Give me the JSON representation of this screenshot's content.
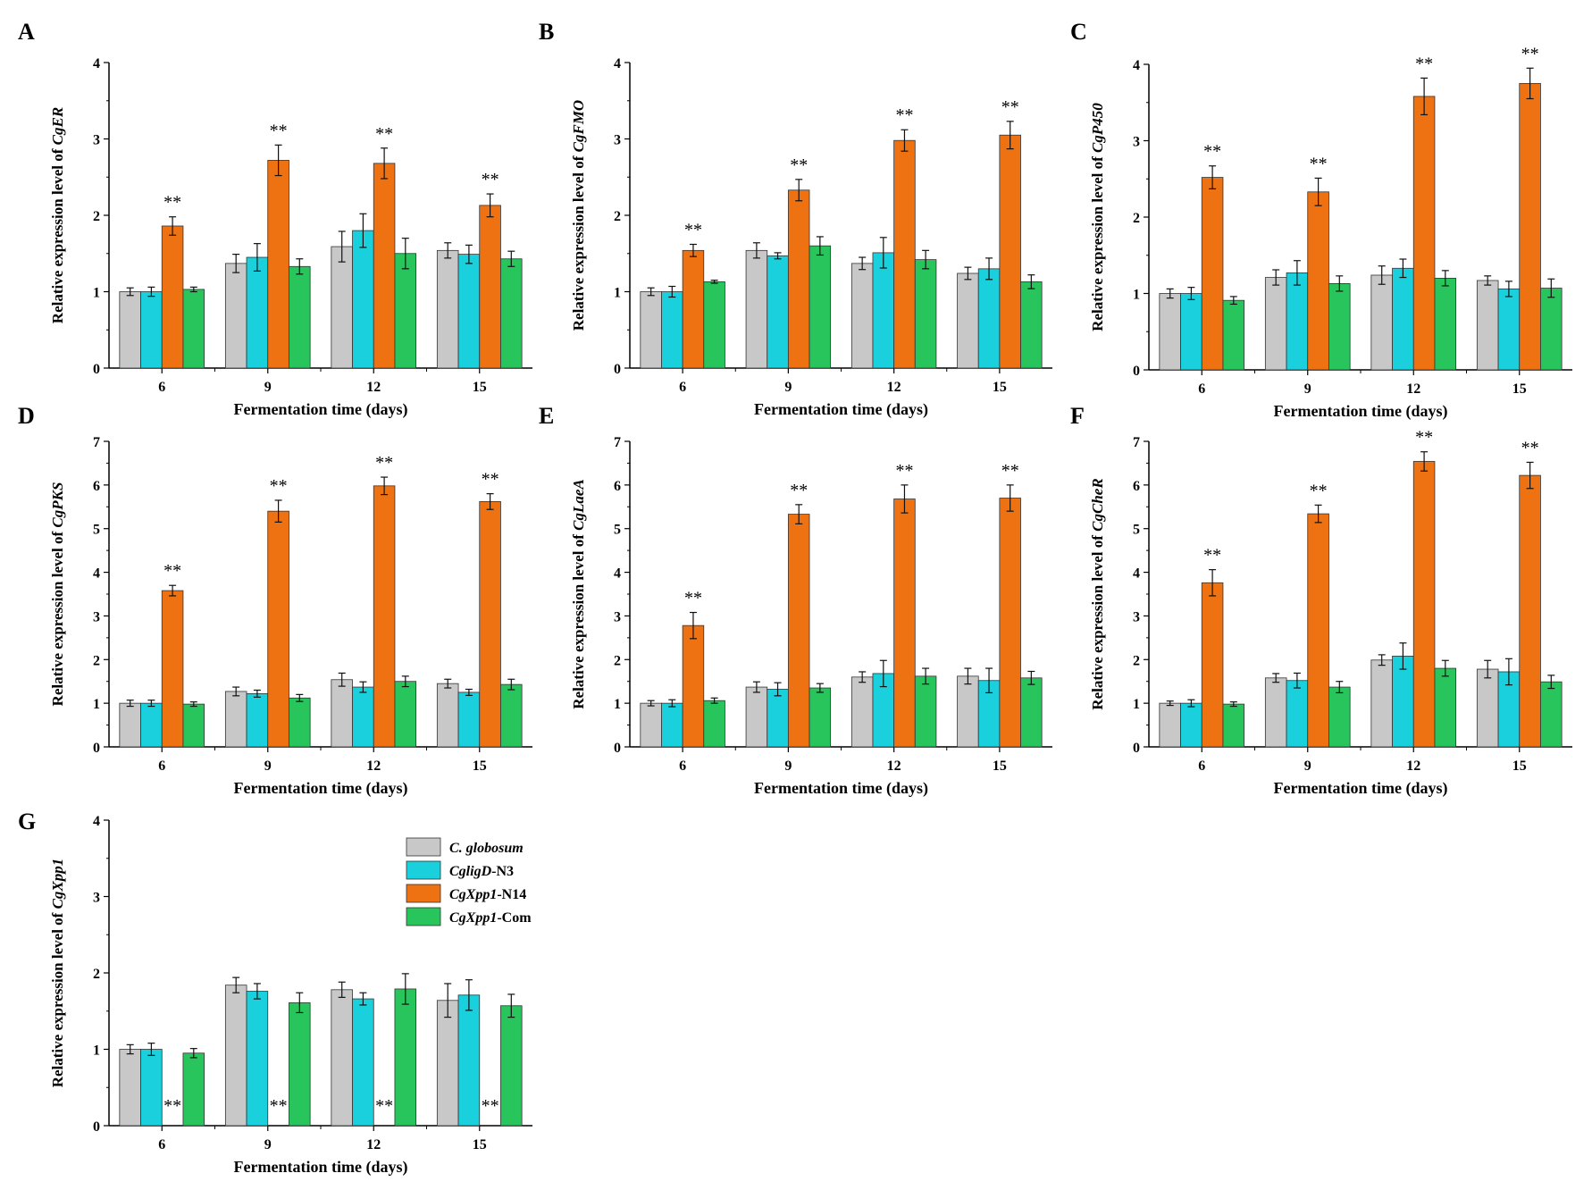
{
  "figure": {
    "series_names": [
      "C. globosum",
      "CgligD-N3",
      "CgXpp1-N14",
      "CgXpp1-Com"
    ],
    "legend": [
      {
        "italic": "C. globosum",
        "rest": ""
      },
      {
        "italic": "CgligD",
        "rest": "-N3"
      },
      {
        "italic": "CgXpp1",
        "rest": "-N14"
      },
      {
        "italic": "CgXpp1",
        "rest": "-Com"
      }
    ],
    "colors": {
      "C. globosum": "#c8c8c8",
      "CgligD-N3": "#1ad0dc",
      "CgXpp1-N14": "#ee7212",
      "CgXpp1-Com": "#28c45c"
    },
    "significance_mark": "**"
  },
  "chart_data": [
    {
      "panel": "A",
      "type": "bar",
      "ylabel_prefix": "Relative expression level of ",
      "gene": "CgER",
      "xlabel": "Fermentation time (days)",
      "categories": [
        "6",
        "9",
        "12",
        "15"
      ],
      "ylim": [
        0,
        4
      ],
      "yticks": [
        0,
        1,
        2,
        3,
        4
      ],
      "series": [
        {
          "name": "C. globosum",
          "values": [
            1.0,
            1.37,
            1.59,
            1.54
          ],
          "errors": [
            0.05,
            0.12,
            0.2,
            0.1
          ]
        },
        {
          "name": "CgligD-N3",
          "values": [
            1.0,
            1.45,
            1.8,
            1.49
          ],
          "errors": [
            0.06,
            0.18,
            0.22,
            0.12
          ]
        },
        {
          "name": "CgXpp1-N14",
          "values": [
            1.86,
            2.72,
            2.68,
            2.13
          ],
          "errors": [
            0.12,
            0.2,
            0.2,
            0.15
          ]
        },
        {
          "name": "CgXpp1-Com",
          "values": [
            1.03,
            1.33,
            1.5,
            1.43
          ],
          "errors": [
            0.03,
            0.1,
            0.2,
            0.1
          ]
        }
      ],
      "annotations": [
        {
          "series": "CgXpp1-N14",
          "categories": [
            0,
            1,
            2,
            3
          ],
          "text": "**"
        }
      ]
    },
    {
      "panel": "B",
      "type": "bar",
      "ylabel_prefix": "Relative expression level of ",
      "gene": "CgFMO",
      "xlabel": "Fermentation time (days)",
      "categories": [
        "6",
        "9",
        "12",
        "15"
      ],
      "ylim": [
        0,
        4
      ],
      "yticks": [
        0,
        1,
        2,
        3,
        4
      ],
      "series": [
        {
          "name": "C. globosum",
          "values": [
            1.0,
            1.54,
            1.37,
            1.24
          ],
          "errors": [
            0.05,
            0.1,
            0.08,
            0.08
          ]
        },
        {
          "name": "CgligD-N3",
          "values": [
            1.0,
            1.47,
            1.51,
            1.3
          ],
          "errors": [
            0.07,
            0.04,
            0.2,
            0.14
          ]
        },
        {
          "name": "CgXpp1-N14",
          "values": [
            1.54,
            2.33,
            2.98,
            3.05
          ],
          "errors": [
            0.08,
            0.14,
            0.14,
            0.18
          ]
        },
        {
          "name": "CgXpp1-Com",
          "values": [
            1.13,
            1.6,
            1.42,
            1.13
          ],
          "errors": [
            0.02,
            0.12,
            0.12,
            0.09
          ]
        }
      ],
      "annotations": [
        {
          "series": "CgXpp1-N14",
          "categories": [
            0,
            1,
            2,
            3
          ],
          "text": "**"
        }
      ]
    },
    {
      "panel": "C",
      "type": "bar",
      "ylabel_prefix": "Relative expression level of ",
      "gene": "CgP450",
      "xlabel": "Fermentation time (days)",
      "categories": [
        "6",
        "9",
        "12",
        "15"
      ],
      "ylim": [
        0,
        4
      ],
      "yticks": [
        0,
        1,
        2,
        3,
        4
      ],
      "series": [
        {
          "name": "C. globosum",
          "values": [
            1.0,
            1.21,
            1.24,
            1.17
          ],
          "errors": [
            0.06,
            0.1,
            0.12,
            0.06
          ]
        },
        {
          "name": "CgligD-N3",
          "values": [
            1.0,
            1.27,
            1.33,
            1.06
          ],
          "errors": [
            0.08,
            0.16,
            0.12,
            0.1
          ]
        },
        {
          "name": "CgXpp1-N14",
          "values": [
            2.52,
            2.33,
            3.58,
            3.75
          ],
          "errors": [
            0.15,
            0.18,
            0.24,
            0.2
          ]
        },
        {
          "name": "CgXpp1-Com",
          "values": [
            0.91,
            1.13,
            1.2,
            1.07
          ],
          "errors": [
            0.05,
            0.1,
            0.1,
            0.12
          ]
        }
      ],
      "annotations": [
        {
          "series": "CgXpp1-N14",
          "categories": [
            0,
            1,
            2,
            3
          ],
          "text": "**"
        }
      ]
    },
    {
      "panel": "D",
      "type": "bar",
      "ylabel_prefix": "Relative expression level of ",
      "gene": "CgPKS",
      "xlabel": "Fermentation time (days)",
      "categories": [
        "6",
        "9",
        "12",
        "15"
      ],
      "ylim": [
        0,
        7
      ],
      "yticks": [
        0,
        1,
        2,
        3,
        4,
        5,
        6,
        7
      ],
      "series": [
        {
          "name": "C. globosum",
          "values": [
            1.0,
            1.27,
            1.54,
            1.45
          ],
          "errors": [
            0.07,
            0.1,
            0.15,
            0.1
          ]
        },
        {
          "name": "CgligD-N3",
          "values": [
            1.0,
            1.22,
            1.37,
            1.25
          ],
          "errors": [
            0.07,
            0.08,
            0.12,
            0.07
          ]
        },
        {
          "name": "CgXpp1-N14",
          "values": [
            3.58,
            5.4,
            5.98,
            5.62
          ],
          "errors": [
            0.12,
            0.25,
            0.2,
            0.18
          ]
        },
        {
          "name": "CgXpp1-Com",
          "values": [
            0.98,
            1.12,
            1.5,
            1.43
          ],
          "errors": [
            0.05,
            0.08,
            0.12,
            0.12
          ]
        }
      ],
      "annotations": [
        {
          "series": "CgXpp1-N14",
          "categories": [
            0,
            1,
            2,
            3
          ],
          "text": "**"
        }
      ]
    },
    {
      "panel": "E",
      "type": "bar",
      "ylabel_prefix": "Relative expression level of ",
      "gene": "CgLaeA",
      "xlabel": "Fermentation time (days)",
      "categories": [
        "6",
        "9",
        "12",
        "15"
      ],
      "ylim": [
        0,
        7
      ],
      "yticks": [
        0,
        1,
        2,
        3,
        4,
        5,
        6,
        7
      ],
      "series": [
        {
          "name": "C. globosum",
          "values": [
            1.0,
            1.37,
            1.6,
            1.62
          ],
          "errors": [
            0.06,
            0.12,
            0.12,
            0.18
          ]
        },
        {
          "name": "CgligD-N3",
          "values": [
            1.0,
            1.32,
            1.68,
            1.52
          ],
          "errors": [
            0.08,
            0.15,
            0.3,
            0.28
          ]
        },
        {
          "name": "CgXpp1-N14",
          "values": [
            2.78,
            5.33,
            5.68,
            5.7
          ],
          "errors": [
            0.3,
            0.22,
            0.32,
            0.3
          ]
        },
        {
          "name": "CgXpp1-Com",
          "values": [
            1.06,
            1.35,
            1.62,
            1.58
          ],
          "errors": [
            0.06,
            0.1,
            0.18,
            0.15
          ]
        }
      ],
      "annotations": [
        {
          "series": "CgXpp1-N14",
          "categories": [
            0,
            1,
            2,
            3
          ],
          "text": "**"
        }
      ]
    },
    {
      "panel": "F",
      "type": "bar",
      "ylabel_prefix": "Relative expression level of ",
      "gene": "CgCheR",
      "xlabel": "Fermentation time (days)",
      "categories": [
        "6",
        "9",
        "12",
        "15"
      ],
      "ylim": [
        0,
        7
      ],
      "yticks": [
        0,
        1,
        2,
        3,
        4,
        5,
        6,
        7
      ],
      "series": [
        {
          "name": "C. globosum",
          "values": [
            1.0,
            1.58,
            1.99,
            1.78
          ],
          "errors": [
            0.05,
            0.1,
            0.12,
            0.2
          ]
        },
        {
          "name": "CgligD-N3",
          "values": [
            1.0,
            1.52,
            2.08,
            1.72
          ],
          "errors": [
            0.08,
            0.17,
            0.3,
            0.3
          ]
        },
        {
          "name": "CgXpp1-N14",
          "values": [
            3.76,
            5.34,
            6.54,
            6.22
          ],
          "errors": [
            0.3,
            0.2,
            0.22,
            0.3
          ]
        },
        {
          "name": "CgXpp1-Com",
          "values": [
            0.98,
            1.37,
            1.8,
            1.49
          ],
          "errors": [
            0.05,
            0.13,
            0.18,
            0.15
          ]
        }
      ],
      "annotations": [
        {
          "series": "CgXpp1-N14",
          "categories": [
            0,
            1,
            2,
            3
          ],
          "text": "**"
        }
      ]
    },
    {
      "panel": "G",
      "type": "bar",
      "ylabel_prefix": "Relative expression level of ",
      "gene": "CgXpp1",
      "xlabel": "Fermentation time (days)",
      "categories": [
        "6",
        "9",
        "12",
        "15"
      ],
      "ylim": [
        0,
        4
      ],
      "yticks": [
        0,
        1,
        2,
        3,
        4
      ],
      "series": [
        {
          "name": "C. globosum",
          "values": [
            1.0,
            1.84,
            1.78,
            1.64
          ],
          "errors": [
            0.06,
            0.1,
            0.1,
            0.22
          ]
        },
        {
          "name": "CgligD-N3",
          "values": [
            1.0,
            1.76,
            1.66,
            1.71
          ],
          "errors": [
            0.08,
            0.1,
            0.08,
            0.2
          ]
        },
        {
          "name": "CgXpp1-N14",
          "values": [
            0,
            0,
            0,
            0
          ],
          "errors": [
            0,
            0,
            0,
            0
          ]
        },
        {
          "name": "CgXpp1-Com",
          "values": [
            0.95,
            1.61,
            1.79,
            1.57
          ],
          "errors": [
            0.06,
            0.13,
            0.2,
            0.15
          ]
        }
      ],
      "annotations": [
        {
          "series": "CgXpp1-N14",
          "categories": [
            0,
            1,
            2,
            3
          ],
          "text": "**",
          "position": "base"
        }
      ],
      "legend_position": "top-right"
    }
  ]
}
